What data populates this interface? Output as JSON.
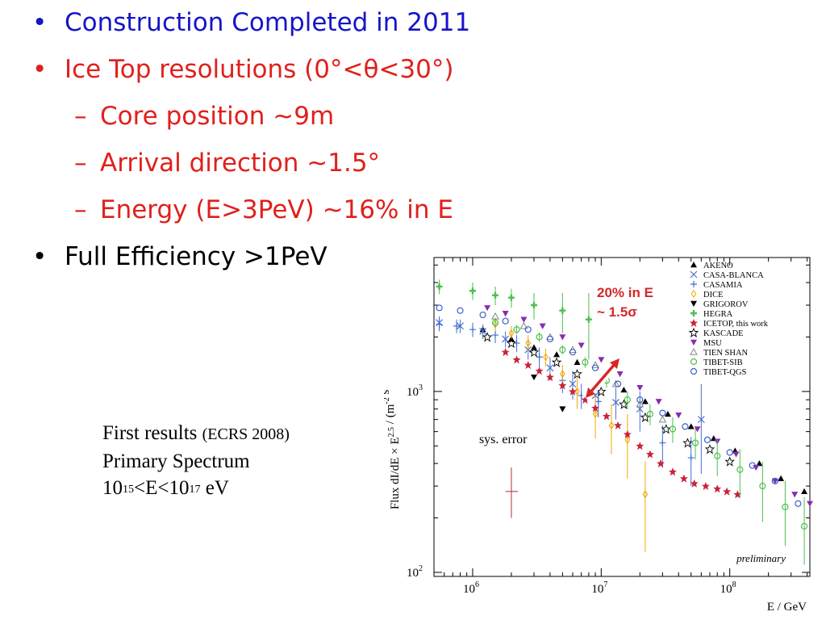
{
  "slide": {
    "bullets": [
      {
        "text": "Construction Completed in 2011",
        "color": "#1515c8",
        "level": 1
      },
      {
        "text": "Ice Top resolutions (0°<θ<30°)",
        "color": "#e0201c",
        "level": 1
      },
      {
        "text": "Core position ~9m",
        "color": "#e0201c",
        "level": 2
      },
      {
        "text": "Arrival direction ~1.5°",
        "color": "#e0201c",
        "level": 2
      },
      {
        "text": "Energy (E>3PeV) ~16% in E",
        "color": "#e0201c",
        "level": 2
      },
      {
        "text": "Full Efficiency >1PeV",
        "color": "#000000",
        "level": 1
      }
    ],
    "caption": {
      "line1_main": "First results",
      "line1_small": "(ECRS 2008)",
      "line2": "Primary Spectrum",
      "line3_base1": "10",
      "line3_exp1": "15",
      "line3_mid": "<E<10",
      "line3_exp2": "17",
      "line3_end": " eV"
    }
  },
  "chart_data": {
    "type": "scatter",
    "xscale": "log",
    "yscale": "log",
    "xlim": [
      500000,
      420000000
    ],
    "ylim": [
      95,
      5500
    ],
    "xlabel": "E / GeV",
    "ylabel": "Flux dI/dE × E^2.5 / (m^-2 s^-1 sr^-1 GeV^1.5)",
    "xticks": [
      {
        "value": 1000000,
        "base": "10",
        "exp": "6"
      },
      {
        "value": 10000000,
        "base": "10",
        "exp": "7"
      },
      {
        "value": 100000000,
        "base": "10",
        "exp": "8"
      }
    ],
    "yticks": [
      {
        "value": 100,
        "base": "10",
        "exp": "2"
      },
      {
        "value": 1000,
        "base": "10",
        "exp": "3"
      }
    ],
    "annotations": {
      "resolution_line1": "20% in E",
      "resolution_line2": "~ 1.5σ",
      "sys_error": "sys. error",
      "preliminary": "preliminary"
    },
    "sys_error_point": {
      "x": 2000000,
      "y": 280,
      "xerr": [
        1800000,
        2250000
      ],
      "yerr": [
        200,
        380
      ]
    },
    "legend_position": "top-right",
    "series": [
      {
        "name": "AKENO",
        "marker": "triangle",
        "color": "#000000",
        "points": [
          [
            1200000,
            2200
          ],
          [
            2000000,
            1950
          ],
          [
            3000000,
            1750
          ],
          [
            4500000,
            1600
          ],
          [
            6500000,
            1450
          ],
          [
            10000000,
            1200
          ],
          [
            15000000,
            1020
          ],
          [
            22000000,
            880
          ],
          [
            33000000,
            750
          ],
          [
            50000000,
            640
          ],
          [
            75000000,
            550
          ],
          [
            110000000,
            470
          ],
          [
            170000000,
            400
          ],
          [
            250000000,
            330
          ],
          [
            380000000,
            280
          ]
        ]
      },
      {
        "name": "CASA-BLANCA",
        "marker": "cross",
        "color": "#4a6fd0",
        "points": [
          [
            550000,
            2400
          ],
          [
            800000,
            2300
          ],
          [
            1200000,
            2150
          ],
          [
            1800000,
            1950
          ],
          [
            2700000,
            1700
          ],
          [
            4000000,
            1350
          ],
          [
            6000000,
            1100
          ],
          [
            9000000,
            950
          ],
          [
            13000000,
            870
          ],
          [
            20000000,
            800
          ],
          [
            60000000,
            700
          ]
        ],
        "yerr": [
          [
            2200,
            2600
          ],
          [
            2100,
            2500
          ],
          [
            1950,
            2350
          ],
          [
            1750,
            2150
          ],
          [
            1500,
            1900
          ],
          [
            1150,
            1550
          ],
          [
            900,
            1300
          ],
          [
            780,
            1120
          ],
          [
            700,
            1050
          ],
          [
            600,
            1000
          ],
          [
            350,
            1100
          ]
        ]
      },
      {
        "name": "CASAMIA",
        "marker": "plus",
        "color": "#3b6fd6",
        "points": [
          [
            550000,
            2350
          ],
          [
            750000,
            2300
          ],
          [
            1000000,
            2200
          ],
          [
            1500000,
            2050
          ],
          [
            2200000,
            1850
          ],
          [
            3300000,
            1550
          ],
          [
            5000000,
            1150
          ],
          [
            7000000,
            950
          ],
          [
            9500000,
            880
          ],
          [
            30000000,
            520
          ],
          [
            50000000,
            430
          ]
        ],
        "yerr": [
          [
            2150,
            2550
          ],
          [
            2100,
            2500
          ],
          [
            2000,
            2400
          ],
          [
            1850,
            2250
          ],
          [
            1650,
            2050
          ],
          [
            1350,
            1750
          ],
          [
            980,
            1320
          ],
          [
            800,
            1100
          ],
          [
            720,
            1040
          ],
          [
            380,
            650
          ],
          [
            300,
            560
          ]
        ]
      },
      {
        "name": "DICE",
        "marker": "diamond-open",
        "color": "#f0a800",
        "points": [
          [
            1500000,
            2350
          ],
          [
            2000000,
            2100
          ],
          [
            2700000,
            1850
          ],
          [
            3700000,
            1550
          ],
          [
            5000000,
            1250
          ],
          [
            6500000,
            1000
          ],
          [
            9000000,
            750
          ],
          [
            12000000,
            650
          ],
          [
            16000000,
            540
          ],
          [
            22000000,
            270
          ]
        ],
        "yerr": [
          [
            2150,
            2550
          ],
          [
            1920,
            2300
          ],
          [
            1650,
            2050
          ],
          [
            1380,
            1720
          ],
          [
            1100,
            1400
          ],
          [
            800,
            1200
          ],
          [
            550,
            950
          ],
          [
            450,
            850
          ],
          [
            330,
            750
          ],
          [
            130,
            410
          ]
        ]
      },
      {
        "name": "GRIGOROV",
        "marker": "triangle-down",
        "color": "#000000",
        "points": [
          [
            3000000,
            1200
          ],
          [
            5000000,
            800
          ]
        ]
      },
      {
        "name": "HEGRA",
        "marker": "plus-thick",
        "color": "#4dbf4d",
        "points": [
          [
            550000,
            3800
          ],
          [
            1000000,
            3600
          ],
          [
            1500000,
            3400
          ],
          [
            2000000,
            3300
          ],
          [
            3000000,
            3000
          ],
          [
            5000000,
            2800
          ],
          [
            8000000,
            2500
          ]
        ],
        "yerr": [
          [
            3450,
            4150
          ],
          [
            3200,
            4000
          ],
          [
            3000,
            3800
          ],
          [
            2900,
            3700
          ],
          [
            2500,
            3500
          ],
          [
            2100,
            3500
          ],
          [
            1500,
            3500
          ]
        ]
      },
      {
        "name": "ICETOP, this work",
        "marker": "star",
        "color": "#c8223a",
        "points": [
          [
            1800000,
            1650
          ],
          [
            2200000,
            1500
          ],
          [
            2700000,
            1400
          ],
          [
            3300000,
            1300
          ],
          [
            4000000,
            1200
          ],
          [
            5000000,
            1080
          ],
          [
            6000000,
            1000
          ],
          [
            7500000,
            900
          ],
          [
            9000000,
            810
          ],
          [
            11000000,
            730
          ],
          [
            13500000,
            650
          ],
          [
            16000000,
            580
          ],
          [
            20000000,
            500
          ],
          [
            24000000,
            450
          ],
          [
            29000000,
            400
          ],
          [
            36000000,
            360
          ],
          [
            44000000,
            330
          ],
          [
            53000000,
            310
          ],
          [
            65000000,
            300
          ],
          [
            80000000,
            290
          ],
          [
            95000000,
            280
          ],
          [
            115000000,
            270
          ]
        ]
      },
      {
        "name": "KASCADE",
        "marker": "star-open",
        "color": "#000000",
        "points": [
          [
            1300000,
            2000
          ],
          [
            2000000,
            1850
          ],
          [
            3000000,
            1650
          ],
          [
            4500000,
            1450
          ],
          [
            6500000,
            1250
          ],
          [
            10000000,
            1000
          ],
          [
            15000000,
            850
          ],
          [
            22000000,
            720
          ],
          [
            32000000,
            620
          ],
          [
            47000000,
            520
          ],
          [
            70000000,
            480
          ],
          [
            100000000,
            410
          ]
        ]
      },
      {
        "name": "MSU",
        "marker": "triangle-down",
        "color": "#8a2bb0",
        "points": [
          [
            1300000,
            2900
          ],
          [
            1800000,
            2700
          ],
          [
            2500000,
            2500
          ],
          [
            3500000,
            2300
          ],
          [
            5000000,
            2000
          ],
          [
            7000000,
            1800
          ],
          [
            10000000,
            1500
          ],
          [
            14000000,
            1250
          ],
          [
            20000000,
            1050
          ],
          [
            28000000,
            880
          ],
          [
            40000000,
            740
          ],
          [
            56000000,
            620
          ],
          [
            80000000,
            530
          ],
          [
            112000000,
            450
          ],
          [
            160000000,
            380
          ],
          [
            225000000,
            320
          ],
          [
            320000000,
            270
          ],
          [
            420000000,
            240
          ]
        ]
      },
      {
        "name": "TIEN SHAN",
        "marker": "triangle-open",
        "color": "#888888",
        "points": [
          [
            1500000,
            2600
          ],
          [
            2500000,
            2300
          ],
          [
            4000000,
            2000
          ],
          [
            6000000,
            1700
          ],
          [
            9000000,
            1400
          ],
          [
            13000000,
            1100
          ],
          [
            20000000,
            850
          ],
          [
            30000000,
            700
          ]
        ]
      },
      {
        "name": "TIBET-SIB",
        "marker": "circle-open",
        "color": "#4dbf4d",
        "points": [
          [
            1500000,
            2400
          ],
          [
            2200000,
            2200
          ],
          [
            3300000,
            2000
          ],
          [
            5000000,
            1700
          ],
          [
            7500000,
            1450
          ],
          [
            11000000,
            1150
          ],
          [
            16000000,
            900
          ],
          [
            24000000,
            750
          ],
          [
            36000000,
            620
          ],
          [
            54000000,
            520
          ],
          [
            80000000,
            440
          ],
          [
            120000000,
            370
          ],
          [
            180000000,
            300
          ],
          [
            270000000,
            230
          ],
          [
            380000000,
            180
          ]
        ],
        "yerr": [
          [
            2250,
            2550
          ],
          [
            2070,
            2330
          ],
          [
            1880,
            2120
          ],
          [
            1600,
            1800
          ],
          [
            1350,
            1550
          ],
          [
            1050,
            1250
          ],
          [
            800,
            1000
          ],
          [
            650,
            850
          ],
          [
            520,
            720
          ],
          [
            420,
            620
          ],
          [
            340,
            540
          ],
          [
            260,
            480
          ],
          [
            190,
            410
          ],
          [
            140,
            320
          ],
          [
            110,
            260
          ]
        ]
      },
      {
        "name": "TIBET-QGS",
        "marker": "circle-open",
        "color": "#3b5fc8",
        "points": [
          [
            550000,
            2900
          ],
          [
            800000,
            2800
          ],
          [
            1200000,
            2650
          ],
          [
            1800000,
            2450
          ],
          [
            2700000,
            2200
          ],
          [
            4000000,
            1950
          ],
          [
            6000000,
            1650
          ],
          [
            9000000,
            1350
          ],
          [
            13500000,
            1100
          ],
          [
            20000000,
            900
          ],
          [
            30000000,
            760
          ],
          [
            45000000,
            640
          ],
          [
            67000000,
            540
          ],
          [
            100000000,
            460
          ],
          [
            150000000,
            390
          ],
          [
            225000000,
            320
          ],
          [
            340000000,
            240
          ]
        ]
      }
    ]
  }
}
